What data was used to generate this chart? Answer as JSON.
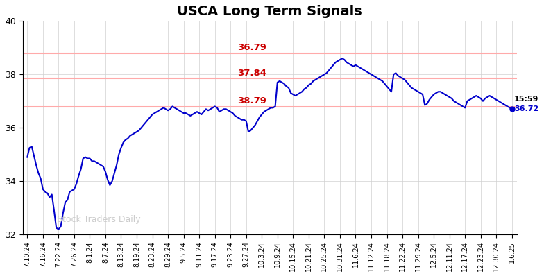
{
  "title": "USCA Long Term Signals",
  "title_fontsize": 14,
  "title_fontweight": "bold",
  "watermark": "Stock Traders Daily",
  "ylim": [
    32,
    40
  ],
  "yticks": [
    32,
    34,
    36,
    38,
    40
  ],
  "hlines": [
    36.79,
    37.84,
    38.79
  ],
  "hline_color": "#ffaaaa",
  "hline_labels": [
    "38.79",
    "37.84",
    "36.79"
  ],
  "hline_label_color": "#cc0000",
  "last_label": "15:59",
  "last_value": "36.72",
  "last_value_color": "#0000cc",
  "line_color": "#0000cc",
  "line_width": 1.5,
  "background_color": "#ffffff",
  "grid_color": "#d0d0d0",
  "xtick_labels": [
    "7.10.24",
    "7.16.24",
    "7.22.24",
    "7.26.24",
    "8.1.24",
    "8.7.24",
    "8.13.24",
    "8.19.24",
    "8.23.24",
    "8.29.24",
    "9.5.24",
    "9.11.24",
    "9.17.24",
    "9.23.24",
    "9.27.24",
    "10.3.24",
    "10.9.24",
    "10.15.24",
    "10.21.24",
    "10.25.24",
    "10.31.24",
    "11.6.24",
    "11.12.24",
    "11.18.24",
    "11.22.24",
    "11.29.24",
    "12.5.24",
    "12.11.24",
    "12.17.24",
    "12.23.24",
    "12.30.24",
    "1.6.25"
  ],
  "y_values": [
    34.9,
    35.25,
    35.3,
    34.95,
    34.6,
    34.3,
    34.1,
    33.7,
    33.6,
    33.55,
    33.4,
    33.5,
    32.9,
    32.25,
    32.2,
    32.3,
    32.8,
    33.2,
    33.3,
    33.6,
    33.65,
    33.7,
    33.9,
    34.2,
    34.45,
    34.85,
    34.9,
    34.85,
    34.85,
    34.75,
    34.75,
    34.7,
    34.65,
    34.6,
    34.55,
    34.35,
    34.05,
    33.85,
    34.0,
    34.3,
    34.6,
    35.0,
    35.25,
    35.45,
    35.55,
    35.6,
    35.7,
    35.75,
    35.8,
    35.85,
    35.9,
    36.0,
    36.1,
    36.2,
    36.3,
    36.4,
    36.5,
    36.55,
    36.6,
    36.65,
    36.7,
    36.75,
    36.7,
    36.65,
    36.7,
    36.8,
    36.75,
    36.7,
    36.65,
    36.6,
    36.55,
    36.55,
    36.5,
    36.45,
    36.5,
    36.55,
    36.6,
    36.55,
    36.5,
    36.6,
    36.7,
    36.65,
    36.7,
    36.75,
    36.8,
    36.75,
    36.6,
    36.65,
    36.7,
    36.7,
    36.65,
    36.6,
    36.55,
    36.45,
    36.4,
    36.35,
    36.3,
    36.3,
    36.25,
    35.85,
    35.9,
    36.0,
    36.1,
    36.25,
    36.4,
    36.5,
    36.6,
    36.65,
    36.7,
    36.75,
    36.75,
    36.8,
    37.7,
    37.75,
    37.7,
    37.65,
    37.55,
    37.5,
    37.3,
    37.25,
    37.2,
    37.25,
    37.3,
    37.35,
    37.45,
    37.5,
    37.6,
    37.65,
    37.75,
    37.8,
    37.85,
    37.9,
    37.95,
    38.0,
    38.05,
    38.15,
    38.25,
    38.35,
    38.45,
    38.5,
    38.55,
    38.6,
    38.55,
    38.45,
    38.4,
    38.35,
    38.3,
    38.35,
    38.3,
    38.25,
    38.2,
    38.15,
    38.1,
    38.05,
    38.0,
    37.95,
    37.9,
    37.85,
    37.8,
    37.75,
    37.65,
    37.55,
    37.45,
    37.35,
    38.0,
    38.05,
    37.95,
    37.9,
    37.85,
    37.8,
    37.7,
    37.6,
    37.5,
    37.45,
    37.4,
    37.35,
    37.3,
    37.25,
    36.85,
    36.9,
    37.05,
    37.15,
    37.25,
    37.3,
    37.35,
    37.35,
    37.3,
    37.25,
    37.2,
    37.15,
    37.1,
    37.0,
    36.95,
    36.9,
    36.85,
    36.8,
    36.75,
    37.0,
    37.05,
    37.1,
    37.15,
    37.2,
    37.15,
    37.1,
    37.0,
    37.1,
    37.15,
    37.2,
    37.15,
    37.1,
    37.05,
    37.0,
    36.95,
    36.9,
    36.85,
    36.8,
    36.75,
    36.72
  ]
}
